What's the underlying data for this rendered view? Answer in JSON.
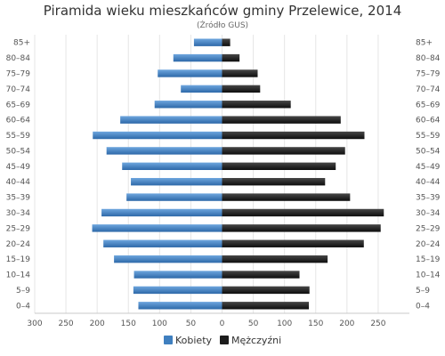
{
  "chart_data": {
    "type": "bar",
    "orientation": "horizontal-pyramid",
    "title": "Piramida wieku mieszkańców gminy Przelewice, 2014",
    "subtitle": "(Źródło  GUS)",
    "categories": [
      "85+",
      "80–84",
      "75–79",
      "70–74",
      "65–69",
      "60–64",
      "55–59",
      "50–54",
      "45–49",
      "40–44",
      "35–39",
      "30–34",
      "25–29",
      "20–24",
      "15–19",
      "10–14",
      "5–9",
      "0–4"
    ],
    "series": [
      {
        "name": "Kobiety",
        "side": "left",
        "color": "#3f7fbf",
        "values": [
          45,
          78,
          103,
          66,
          108,
          163,
          207,
          185,
          160,
          146,
          153,
          193,
          208,
          190,
          173,
          141,
          142,
          134
        ]
      },
      {
        "name": "Mężczyźni",
        "side": "right",
        "color": "#1c1c1c",
        "values": [
          13,
          28,
          57,
          61,
          110,
          190,
          228,
          197,
          182,
          165,
          205,
          259,
          254,
          227,
          169,
          124,
          140,
          139
        ]
      }
    ],
    "xlim": [
      -300,
      300
    ],
    "x_ticks": [
      -300,
      -250,
      -200,
      -150,
      -100,
      -50,
      0,
      50,
      100,
      150,
      200,
      250
    ],
    "x_tick_labels": [
      "300",
      "250",
      "200",
      "150",
      "100",
      "50",
      "0",
      "50",
      "100",
      "150",
      "200",
      "250"
    ],
    "grid": true,
    "legend": "bottom-center"
  }
}
